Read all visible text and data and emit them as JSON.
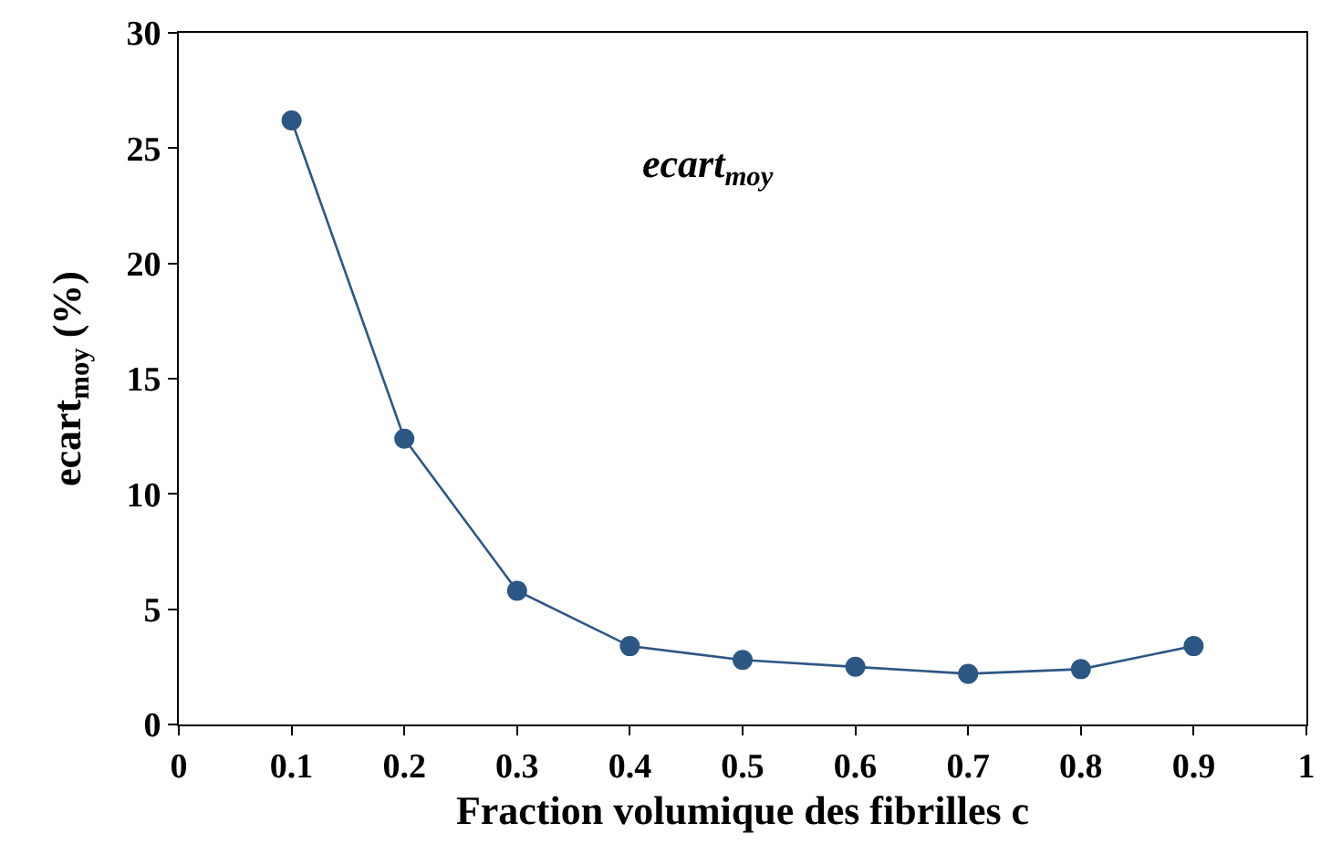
{
  "chart_data": {
    "type": "line",
    "xlabel": "Fraction volumique des fibrilles c",
    "ylabel": "ecart$_{moy}$ (%)",
    "annotations": [
      "ecart$_{moy}$"
    ],
    "x": [
      0.1,
      0.2,
      0.3,
      0.4,
      0.5,
      0.6,
      0.7,
      0.8,
      0.9
    ],
    "series": [
      {
        "color": "#2c5784",
        "values": [
          26.2,
          12.4,
          5.8,
          3.4,
          2.8,
          2.5,
          2.2,
          2.4,
          3.4
        ]
      }
    ],
    "xlim": [
      0,
      1
    ],
    "xticks": [
      0,
      0.1,
      0.2,
      0.3,
      0.4,
      0.5,
      0.6,
      0.7,
      0.8,
      0.9,
      1
    ],
    "ylim": [
      0,
      30
    ],
    "yticks": [
      0,
      5,
      10,
      15,
      20,
      25,
      30
    ],
    "marker": "circle",
    "line_style": "solid",
    "grid": false
  }
}
